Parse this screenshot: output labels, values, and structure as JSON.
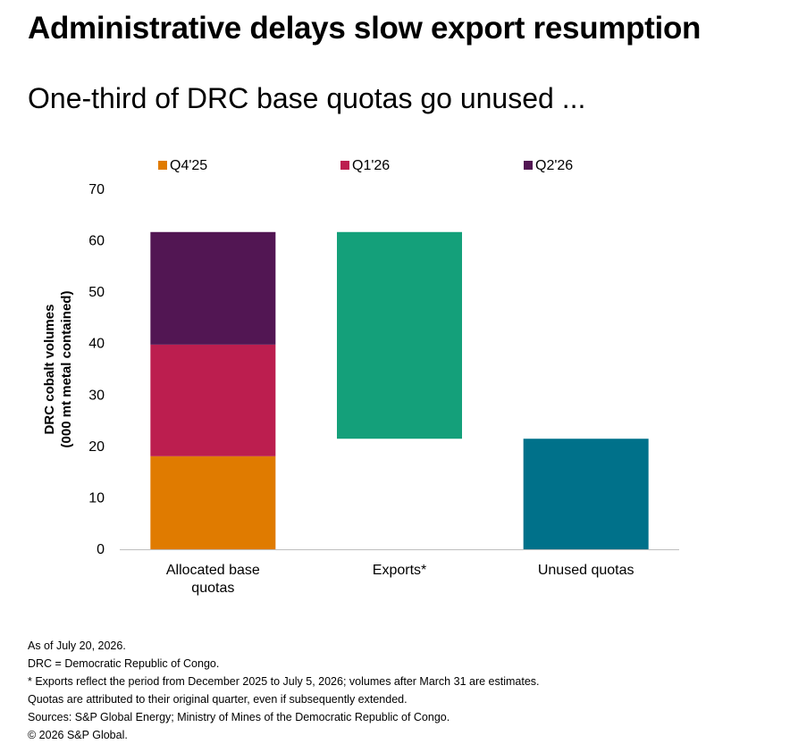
{
  "header": {
    "title": "Administrative delays slow export resumption",
    "subtitle": "One-third of DRC base quotas go unused ..."
  },
  "chart_data": {
    "type": "bar",
    "subtype": "waterfall-stacked",
    "categories": [
      "Allocated base\nquotas",
      "Exports*",
      "Unused quotas"
    ],
    "ylabel": "DRC cobalt volumes\n(000 mt metal contained)",
    "ylim": [
      0,
      70
    ],
    "yticks": [
      0,
      10,
      20,
      30,
      40,
      50,
      60,
      70
    ],
    "grid": false,
    "legend_position": "top",
    "stacked_series": [
      {
        "name": "Q4'25",
        "color": "#E07B00",
        "values": [
          18.1,
          null,
          null
        ]
      },
      {
        "name": "Q1'26",
        "color": "#BC1E4F",
        "values": [
          21.7,
          null,
          null
        ]
      },
      {
        "name": "Q2'26",
        "color": "#521653",
        "values": [
          21.9,
          null,
          null
        ]
      }
    ],
    "floating_bars": [
      {
        "category_index": 1,
        "start": 21.5,
        "end": 61.7,
        "color": "#14A07A"
      },
      {
        "category_index": 2,
        "start": 0,
        "end": 21.5,
        "color": "#00718A"
      }
    ]
  },
  "notes": [
    "As of July 20, 2026.",
    "DRC = Democratic Republic of Congo.",
    " * Exports reflect the period from December 2025 to July 5, 2026; volumes after March 31 are estimates.",
    "Quotas are attributed to their original quarter, even if subsequently extended.",
    "Sources: S&P Global Energy; Ministry of Mines of the Democratic Republic of Congo.",
    "© 2026 S&P Global."
  ]
}
